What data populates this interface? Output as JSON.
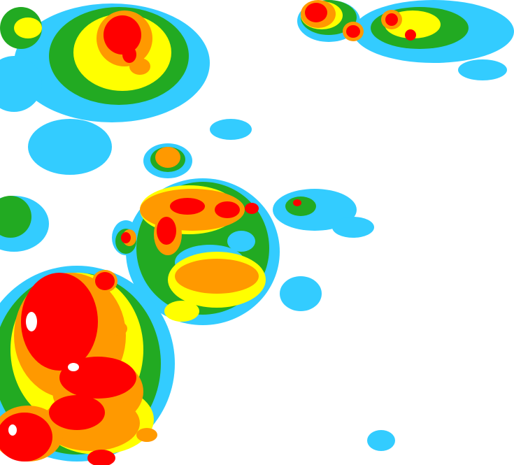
{
  "map": {
    "type": "precipitation-intensity-radar",
    "background": "#ffffff",
    "palette": {
      "light": "#33ccff",
      "light_moderate": "#00a0c8",
      "moderate": "#22aa22",
      "dark_edge": "#004400",
      "heavy": "#ffff00",
      "very_heavy": "#ff9900",
      "intense": "#ff0000",
      "extreme": "#ffffff"
    }
  }
}
